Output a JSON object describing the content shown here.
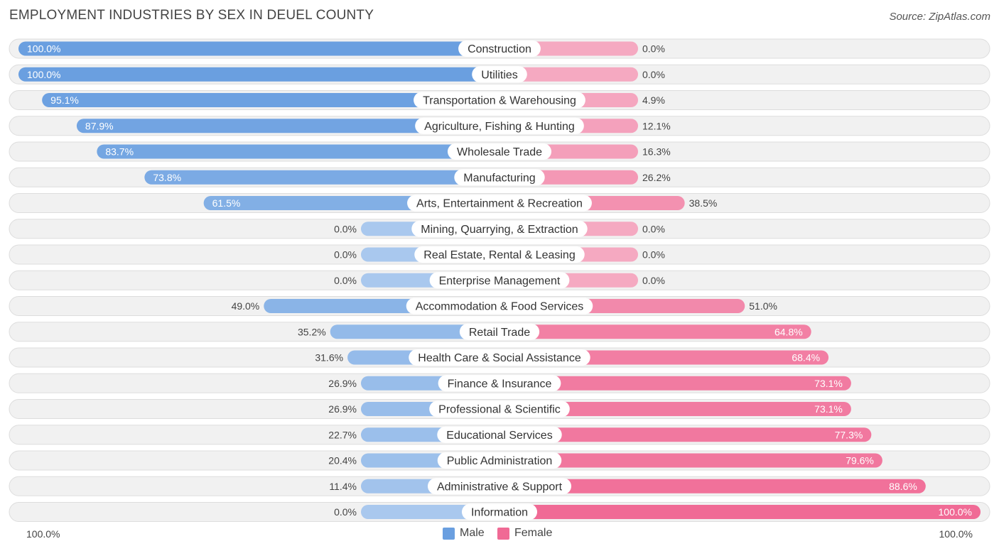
{
  "title": "EMPLOYMENT INDUSTRIES BY SEX IN DEUEL COUNTY",
  "source": "Source: ZipAtlas.com",
  "colors": {
    "male_strong": "#6a9fe0",
    "male_light": "#a9c8ee",
    "female_strong": "#f06a95",
    "female_light": "#f5a9c1",
    "row_bg": "#f1f1f1",
    "row_border": "#dddddd"
  },
  "legend": {
    "male": "Male",
    "female": "Female"
  },
  "axis": {
    "left": "100.0%",
    "right": "100.0%"
  },
  "chart_data": {
    "type": "bar",
    "orientation": "horizontal-diverging",
    "title": "EMPLOYMENT INDUSTRIES BY SEX IN DEUEL COUNTY",
    "xlim": [
      -100,
      100
    ],
    "categories": [
      "Construction",
      "Utilities",
      "Transportation & Warehousing",
      "Agriculture, Fishing & Hunting",
      "Wholesale Trade",
      "Manufacturing",
      "Arts, Entertainment & Recreation",
      "Mining, Quarrying, & Extraction",
      "Real Estate, Rental & Leasing",
      "Enterprise Management",
      "Accommodation & Food Services",
      "Retail Trade",
      "Health Care & Social Assistance",
      "Finance & Insurance",
      "Professional & Scientific",
      "Educational Services",
      "Public Administration",
      "Administrative & Support",
      "Information"
    ],
    "series": [
      {
        "name": "Male",
        "values": [
          100.0,
          100.0,
          95.1,
          87.9,
          83.7,
          73.8,
          61.5,
          0.0,
          0.0,
          0.0,
          49.0,
          35.2,
          31.6,
          26.9,
          26.9,
          22.7,
          20.4,
          11.4,
          0.0
        ],
        "labels": [
          "100.0%",
          "100.0%",
          "95.1%",
          "87.9%",
          "83.7%",
          "73.8%",
          "61.5%",
          "0.0%",
          "0.0%",
          "0.0%",
          "49.0%",
          "35.2%",
          "31.6%",
          "26.9%",
          "26.9%",
          "22.7%",
          "20.4%",
          "11.4%",
          "0.0%"
        ]
      },
      {
        "name": "Female",
        "values": [
          0.0,
          0.0,
          4.9,
          12.1,
          16.3,
          26.2,
          38.5,
          0.0,
          0.0,
          0.0,
          51.0,
          64.8,
          68.4,
          73.1,
          73.1,
          77.3,
          79.6,
          88.6,
          100.0
        ],
        "labels": [
          "0.0%",
          "0.0%",
          "4.9%",
          "12.1%",
          "16.3%",
          "26.2%",
          "38.5%",
          "0.0%",
          "0.0%",
          "0.0%",
          "51.0%",
          "64.8%",
          "68.4%",
          "73.1%",
          "73.1%",
          "77.3%",
          "79.6%",
          "88.6%",
          "100.0%"
        ]
      }
    ]
  }
}
